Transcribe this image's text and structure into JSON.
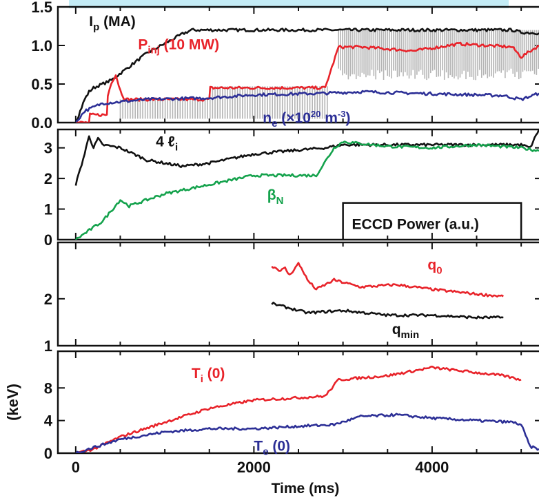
{
  "chart_data": {
    "type": "line",
    "x_label": "Time (ms)",
    "xlim": [
      -200,
      5200
    ],
    "x_ticks": [
      0,
      2000,
      4000
    ],
    "colors": {
      "black": "#111111",
      "red": "#e8232a",
      "blue": "#2c2f96",
      "green": "#14a24c",
      "gray": "#b4b4b4"
    },
    "panels": [
      {
        "ylim": [
          0,
          1.5
        ],
        "y_ticks": [
          0.0,
          0.5,
          1.0,
          1.5
        ],
        "y_tick_labels": [
          "0.0",
          "0.5",
          "1.0",
          "1.5"
        ],
        "series": [
          {
            "name": "Ip (MA)",
            "color": "black",
            "x": [
              0,
              100,
              150,
              200,
              400,
              800,
              1200,
              1300,
              2000,
              3000,
              4000,
              4900,
              5000,
              5200
            ],
            "y": [
              0,
              0.3,
              0.4,
              0.45,
              0.55,
              0.9,
              1.15,
              1.2,
              1.2,
              1.2,
              1.2,
              1.2,
              1.17,
              1.16
            ]
          },
          {
            "name": "Pinj (10 MW)",
            "color": "red",
            "x": [
              0,
              150,
              160,
              350,
              360,
              400,
              450,
              500,
              550,
              1500,
              1510,
              2800,
              2950,
              3200,
              3800,
              4300,
              4900,
              5000,
              5200
            ],
            "y": [
              0,
              0,
              0.1,
              0.1,
              0.35,
              0.52,
              0.62,
              0.42,
              0.3,
              0.3,
              0.45,
              0.45,
              0.98,
              0.98,
              0.93,
              1.02,
              0.98,
              0.85,
              1.0
            ]
          },
          {
            "name": "ne (×10²⁰ m⁻³)",
            "color": "blue",
            "x": [
              0,
              100,
              300,
              800,
              1500,
              2000,
              2800,
              3200,
              3800,
              4800,
              5000,
              5200
            ],
            "y": [
              0,
              0.15,
              0.25,
              0.3,
              0.32,
              0.36,
              0.38,
              0.4,
              0.38,
              0.35,
              0.3,
              0.38
            ]
          }
        ],
        "labels": [
          {
            "text": "I",
            "sub": "p",
            "rest": " (MA)",
            "color": "black",
            "x": 150,
            "y": 1.25
          },
          {
            "text": "P",
            "sub": "inj",
            "rest": " (10 MW)",
            "color": "red",
            "x": 700,
            "y": 0.95
          },
          {
            "text": "n",
            "sub": "e",
            "rest": " (×10",
            "sup": "20",
            "rest2": " m",
            "sup2": "-3",
            "rest3": ")",
            "color": "blue",
            "x": 2100,
            "y": 0.0
          }
        ]
      },
      {
        "ylim": [
          0,
          3.6
        ],
        "y_ticks": [
          0,
          1,
          2,
          3
        ],
        "y_tick_labels": [
          "0",
          "1",
          "2",
          "3"
        ],
        "series": [
          {
            "name": "4 ℓi",
            "color": "black",
            "x": [
              0,
              100,
              150,
              200,
              250,
              300,
              500,
              800,
              1200,
              1500,
              2000,
              2800,
              3000,
              4000,
              5000,
              5100,
              5200
            ],
            "y": [
              1.8,
              2.8,
              3.4,
              3.0,
              3.3,
              3.1,
              3.0,
              2.6,
              2.4,
              2.5,
              2.8,
              3.0,
              3.1,
              3.1,
              3.1,
              3.0,
              3.6
            ]
          },
          {
            "name": "βN",
            "color": "green",
            "x": [
              0,
              100,
              300,
              500,
              600,
              700,
              1000,
              1500,
              2000,
              2700,
              2900,
              3000,
              3500,
              4000,
              4500,
              5000,
              5200
            ],
            "y": [
              0,
              0.2,
              0.6,
              1.3,
              1.1,
              1.2,
              1.5,
              1.8,
              2.1,
              2.1,
              3.0,
              3.2,
              3.05,
              3.0,
              3.1,
              3.0,
              2.9
            ]
          }
        ],
        "ecrh": {
          "x_on": 3000,
          "x_off": 5000,
          "level": 1.2
        },
        "labels": [
          {
            "text": "4 ℓ",
            "sub": "i",
            "color": "black",
            "x": 900,
            "y": 3.05
          },
          {
            "text": "β",
            "sub": "N",
            "color": "green",
            "x": 2150,
            "y": 1.3
          },
          {
            "text": "ECCD Power  (a.u.)",
            "color": "black",
            "x": 3100,
            "y": 0.35
          }
        ]
      },
      {
        "ylim": [
          1,
          3.2
        ],
        "y_ticks": [
          1,
          2
        ],
        "y_tick_labels": [
          "1",
          "2"
        ],
        "series": [
          {
            "name": "q0",
            "color": "red",
            "x": [
              2200,
              2300,
              2350,
              2400,
              2500,
              2550,
              2600,
              2700,
              2900,
              3200,
              3600,
              4000,
              4500,
              4800
            ],
            "y": [
              2.7,
              2.6,
              2.65,
              2.5,
              2.75,
              2.6,
              2.4,
              2.2,
              2.4,
              2.25,
              2.3,
              2.2,
              2.1,
              2.05
            ]
          },
          {
            "name": "qmin",
            "color": "black",
            "x": [
              2200,
              2400,
              2600,
              3000,
              3500,
              4000,
              4500,
              4800
            ],
            "y": [
              1.9,
              1.8,
              1.7,
              1.75,
              1.65,
              1.65,
              1.6,
              1.6
            ]
          }
        ],
        "labels": [
          {
            "text": "q",
            "sub": "0",
            "color": "red",
            "x": 3950,
            "y": 2.62
          },
          {
            "text": "q",
            "sub": "min",
            "color": "black",
            "x": 3550,
            "y": 1.25
          }
        ]
      },
      {
        "ylim": [
          0,
          12.5
        ],
        "y_ticks": [
          0,
          4,
          8
        ],
        "y_tick_labels": [
          "0",
          "4",
          "8"
        ],
        "y_label": "(keV)",
        "series": [
          {
            "name": "Ti (0)",
            "color": "red",
            "x": [
              0,
              200,
              500,
              1000,
              1500,
              2000,
              2500,
              2800,
              2950,
              3500,
              4000,
              4400,
              4800,
              5000
            ],
            "y": [
              0,
              0.5,
              2,
              3.8,
              5.5,
              6.5,
              6.8,
              7.0,
              9.0,
              9.5,
              10.5,
              10,
              9.5,
              9.0
            ]
          },
          {
            "name": "Te (0)",
            "color": "blue",
            "x": [
              0,
              200,
              500,
              1000,
              1500,
              2000,
              2500,
              2900,
              3200,
              3600,
              4000,
              4500,
              4900,
              5000,
              5100,
              5200
            ],
            "y": [
              0,
              0.7,
              1.7,
              2.6,
              3.0,
              3.0,
              3.3,
              3.5,
              4.5,
              4.7,
              4.3,
              4.0,
              3.8,
              3.5,
              0.8,
              0.5
            ]
          }
        ],
        "labels": [
          {
            "text": "T",
            "sub": "i",
            "rest": " (0)",
            "color": "red",
            "x": 1300,
            "y": 9.2
          },
          {
            "text": "T",
            "sub": "e",
            "rest": "  (0)",
            "color": "blue",
            "x": 2000,
            "y": 0.3
          }
        ]
      }
    ]
  }
}
